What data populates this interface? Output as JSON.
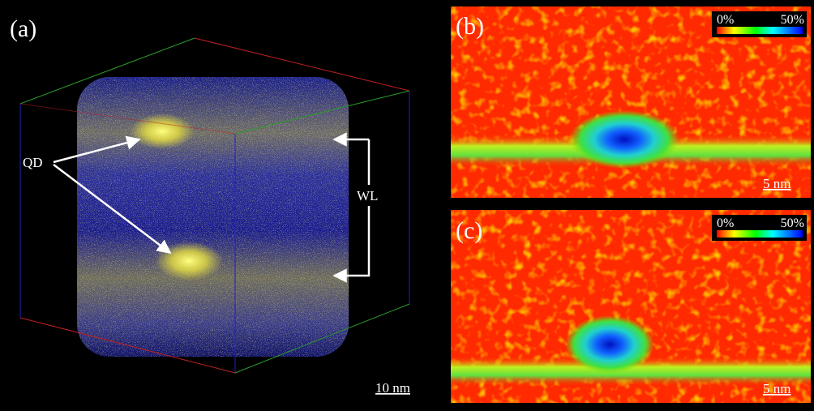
{
  "panels": [
    {
      "label": "(a)",
      "annotations": [
        "QD",
        "WL"
      ],
      "scale_bar": "10 nm"
    },
    {
      "label": "(b)",
      "colorbar": {
        "min_label": "0%",
        "max_label": "50%"
      },
      "scale_bar": "5 nm"
    },
    {
      "label": "(c)",
      "colorbar": {
        "min_label": "0%",
        "max_label": "50%"
      },
      "scale_bar": "5 nm"
    }
  ]
}
